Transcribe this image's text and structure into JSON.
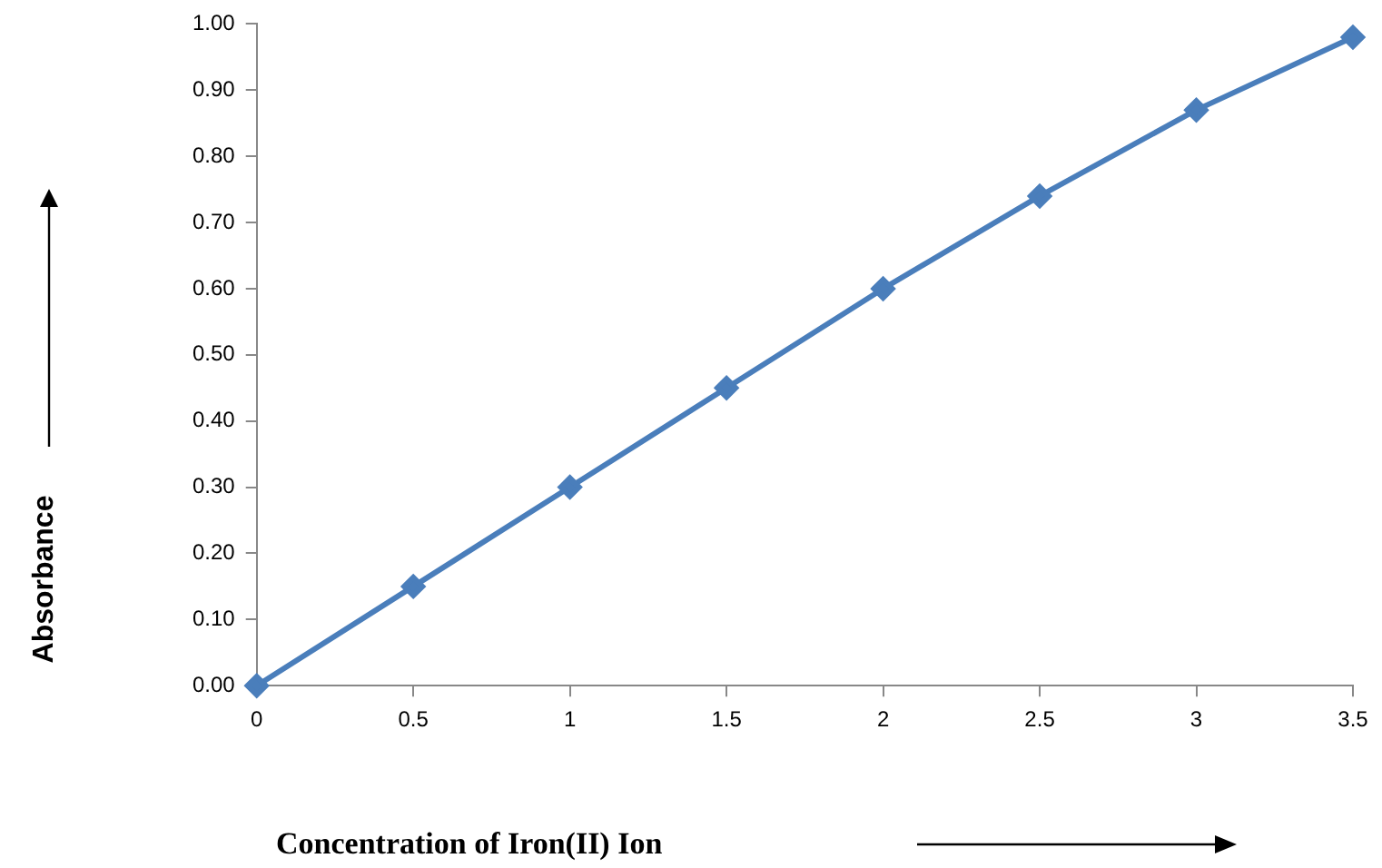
{
  "chart_data": {
    "type": "line",
    "xlabel": "Concentration of Iron(II) Ion",
    "ylabel": "Absorbance",
    "x": [
      0,
      0.5,
      1,
      1.5,
      2,
      2.5,
      3,
      3.5
    ],
    "series": [
      {
        "color": "#4a7ebb",
        "values": [
          0,
          0.15,
          0.3,
          0.45,
          0.6,
          0.74,
          0.87,
          0.98
        ]
      }
    ],
    "xlim": [
      0,
      3.5
    ],
    "xticks": [
      0,
      0.5,
      1,
      1.5,
      2,
      2.5,
      3,
      3.5
    ],
    "ylim": [
      0,
      1
    ],
    "yticks": [
      {
        "value": 0,
        "label": "0.00"
      },
      {
        "value": 0.1,
        "label": "0.10"
      },
      {
        "value": 0.2,
        "label": "0.20"
      },
      {
        "value": 0.3,
        "label": "0.30"
      },
      {
        "value": 0.4,
        "label": "0.40"
      },
      {
        "value": 0.5,
        "label": "0.50"
      },
      {
        "value": 0.6,
        "label": "0.60"
      },
      {
        "value": 0.7,
        "label": "0.70"
      },
      {
        "value": 0.8,
        "label": "0.80"
      },
      {
        "value": 0.9,
        "label": "0.90"
      },
      {
        "value": 1,
        "label": "1.00"
      }
    ],
    "grid": false,
    "legend": false,
    "marker": "diamond",
    "line_style": "solid"
  }
}
